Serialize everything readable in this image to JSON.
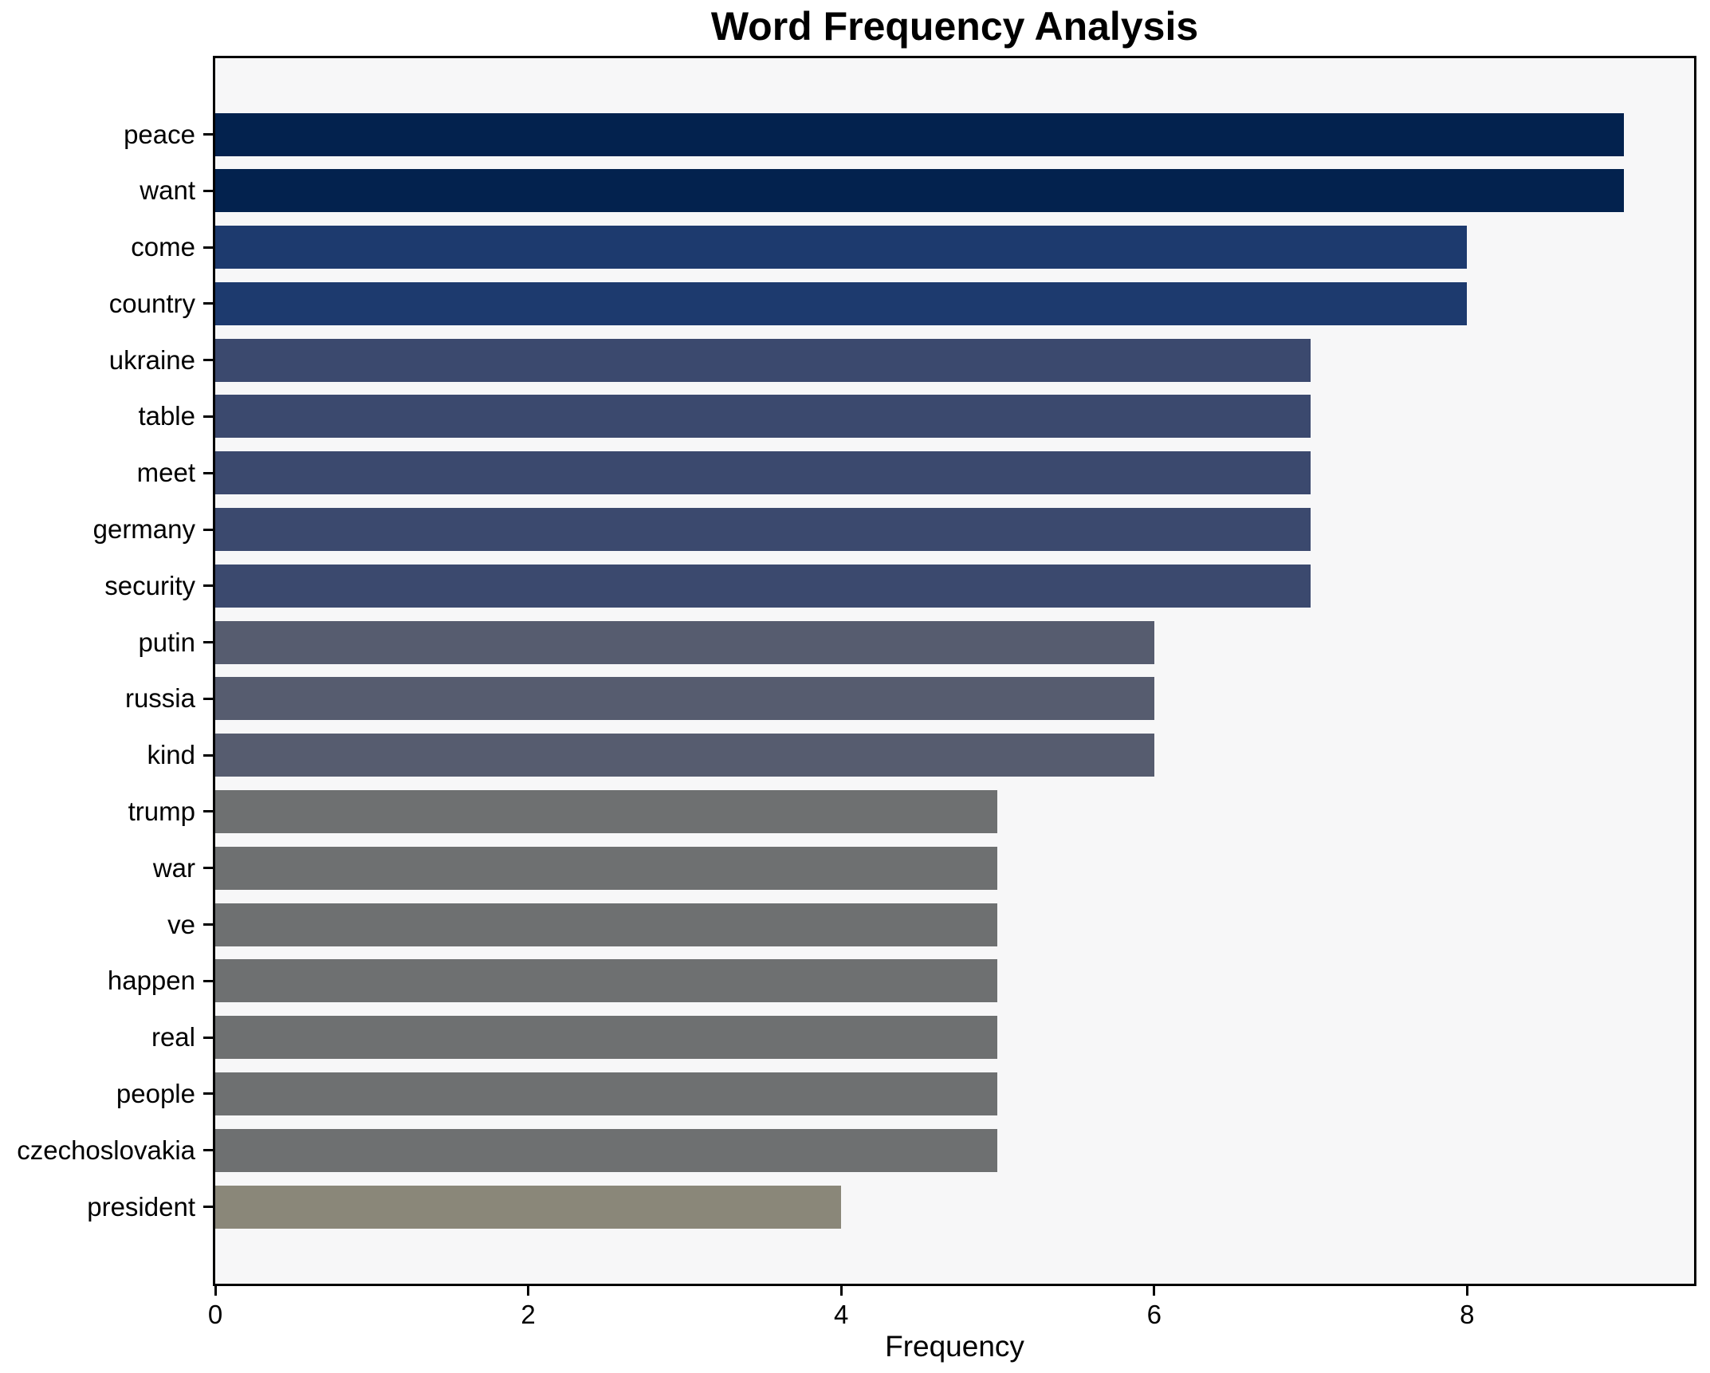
{
  "chart_data": {
    "type": "bar",
    "orientation": "horizontal",
    "title": "Word Frequency Analysis",
    "xlabel": "Frequency",
    "ylabel": "",
    "categories": [
      "peace",
      "want",
      "come",
      "country",
      "ukraine",
      "table",
      "meet",
      "germany",
      "security",
      "putin",
      "russia",
      "kind",
      "trump",
      "war",
      "ve",
      "happen",
      "real",
      "people",
      "czechoslovakia",
      "president"
    ],
    "values": [
      9,
      9,
      8,
      8,
      7,
      7,
      7,
      7,
      7,
      6,
      6,
      6,
      5,
      5,
      5,
      5,
      5,
      5,
      5,
      4
    ],
    "bar_colors": [
      "#03224e",
      "#03224e",
      "#1d3a6e",
      "#1d3a6e",
      "#3b496e",
      "#3b496e",
      "#3b496e",
      "#3b496e",
      "#3b496e",
      "#565c6f",
      "#565c6f",
      "#565c6f",
      "#6e7071",
      "#6e7071",
      "#6e7071",
      "#6e7071",
      "#6e7071",
      "#6e7071",
      "#6e7071",
      "#8a8779"
    ],
    "xlim": [
      0,
      9.45
    ],
    "x_ticks": [
      0,
      2,
      4,
      6,
      8
    ],
    "x_tick_labels": [
      "0",
      "2",
      "4",
      "6",
      "8"
    ],
    "grid": false,
    "legend": null,
    "plot_background": "#f7f7f8",
    "figure_background": "#ffffff",
    "spine_color": "#000000"
  }
}
